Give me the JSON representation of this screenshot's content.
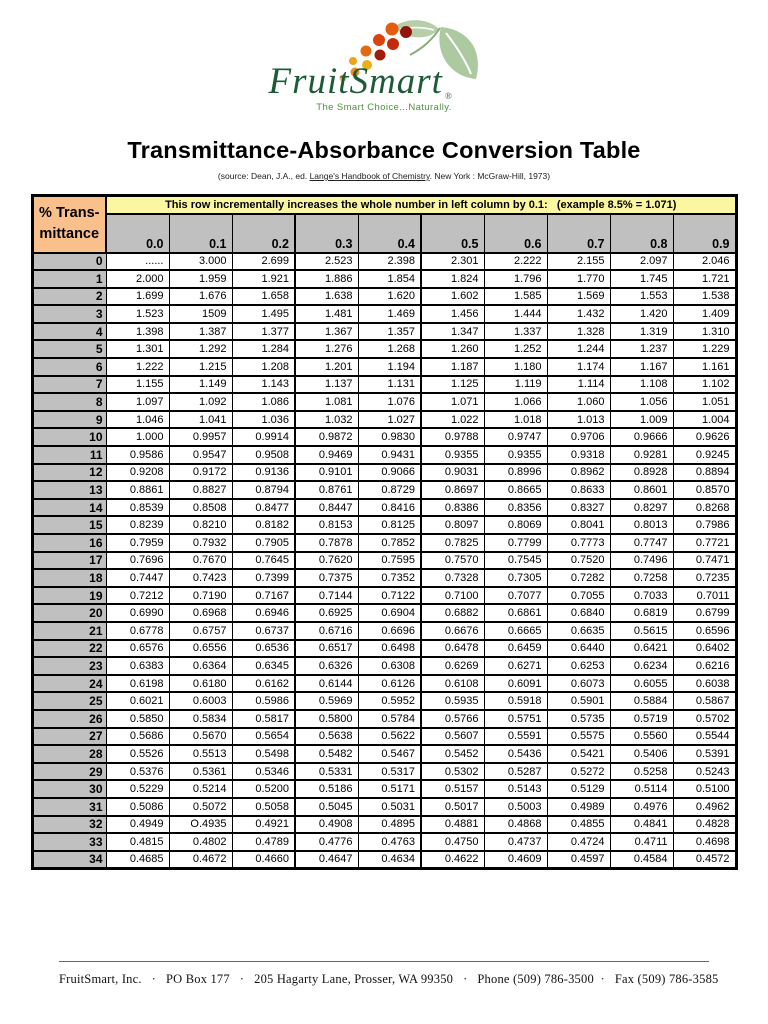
{
  "logo": {
    "brand": "FruitSmart",
    "registered_mark": "®",
    "tagline": "The Smart Choice...Naturally.",
    "colors": {
      "brand_green": "#1D5B36",
      "tagline_green": "#4E9140",
      "leaf_green": "#ACC9A0",
      "leaf_green_light": "#B6CFA9"
    }
  },
  "title": "Transmittance-Absorbance Conversion Table",
  "source": {
    "prefix": "(source:  Dean, J.A., ed. ",
    "underlined": "Lange's Handbook of Chemistry",
    "suffix": ". New York : McGraw-Hill, 1973)"
  },
  "table": {
    "corner_label_line1": "% Trans-",
    "corner_label_line2": "mittance",
    "instruction": "This row incrementally increases the whole number in left column by 0.1:   (example 8.5% = 1.071)",
    "col_headers": [
      "0.0",
      "0.1",
      "0.2",
      "0.3",
      "0.4",
      "0.5",
      "0.6",
      "0.7",
      "0.8",
      "0.9"
    ],
    "colors": {
      "corner_bg": "#FAC08C",
      "instruction_bg": "#FAF7A0",
      "header_bg": "#C0C0C0"
    },
    "rows": [
      {
        "label": "0",
        "values": [
          "......",
          "3.000",
          "2.699",
          "2.523",
          "2.398",
          "2.301",
          "2.222",
          "2.155",
          "2.097",
          "2.046"
        ]
      },
      {
        "label": "1",
        "values": [
          "2.000",
          "1.959",
          "1.921",
          "1.886",
          "1.854",
          "1.824",
          "1.796",
          "1.770",
          "1.745",
          "1.721"
        ]
      },
      {
        "label": "2",
        "values": [
          "1.699",
          "1.676",
          "1.658",
          "1.638",
          "1.620",
          "1.602",
          "1.585",
          "1.569",
          "1.553",
          "1.538"
        ]
      },
      {
        "label": "3",
        "values": [
          "1.523",
          "1509",
          "1.495",
          "1.481",
          "1.469",
          "1.456",
          "1.444",
          "1.432",
          "1.420",
          "1.409"
        ]
      },
      {
        "label": "4",
        "values": [
          "1.398",
          "1.387",
          "1.377",
          "1.367",
          "1.357",
          "1.347",
          "1.337",
          "1.328",
          "1.319",
          "1.310"
        ]
      },
      {
        "label": "5",
        "values": [
          "1.301",
          "1.292",
          "1.284",
          "1.276",
          "1.268",
          "1.260",
          "1.252",
          "1.244",
          "1.237",
          "1.229"
        ]
      },
      {
        "label": "6",
        "values": [
          "1.222",
          "1.215",
          "1.208",
          "1.201",
          "1.194",
          "1.187",
          "1.180",
          "1.174",
          "1.167",
          "1.161"
        ]
      },
      {
        "label": "7",
        "values": [
          "1.155",
          "1.149",
          "1.143",
          "1.137",
          "1.131",
          "1.125",
          "1.119",
          "1.114",
          "1.108",
          "1.102"
        ]
      },
      {
        "label": "8",
        "values": [
          "1.097",
          "1.092",
          "1.086",
          "1.081",
          "1.076",
          "1.071",
          "1.066",
          "1.060",
          "1.056",
          "1.051"
        ]
      },
      {
        "label": "9",
        "values": [
          "1.046",
          "1.041",
          "1.036",
          "1.032",
          "1.027",
          "1.022",
          "1.018",
          "1.013",
          "1.009",
          "1.004"
        ]
      },
      {
        "label": "10",
        "values": [
          "1.000",
          "0.9957",
          "0.9914",
          "0.9872",
          "0.9830",
          "0.9788",
          "0.9747",
          "0.9706",
          "0.9666",
          "0.9626"
        ]
      },
      {
        "label": "11",
        "values": [
          "0.9586",
          "0.9547",
          "0.9508",
          "0.9469",
          "0.9431",
          "0.9355",
          "0.9355",
          "0.9318",
          "0.9281",
          "0.9245"
        ]
      },
      {
        "label": "12",
        "values": [
          "0.9208",
          "0.9172",
          "0.9136",
          "0.9101",
          "0.9066",
          "0.9031",
          "0.8996",
          "0.8962",
          "0.8928",
          "0.8894"
        ]
      },
      {
        "label": "13",
        "values": [
          "0.8861",
          "0.8827",
          "0.8794",
          "0.8761",
          "0.8729",
          "0.8697",
          "0.8665",
          "0.8633",
          "0.8601",
          "0.8570"
        ]
      },
      {
        "label": "14",
        "values": [
          "0.8539",
          "0.8508",
          "0.8477",
          "0.8447",
          "0.8416",
          "0.8386",
          "0.8356",
          "0.8327",
          "0.8297",
          "0.8268"
        ]
      },
      {
        "label": "15",
        "values": [
          "0.8239",
          "0.8210",
          "0.8182",
          "0.8153",
          "0.8125",
          "0.8097",
          "0.8069",
          "0.8041",
          "0.8013",
          "0.7986"
        ]
      },
      {
        "label": "16",
        "values": [
          "0.7959",
          "0.7932",
          "0.7905",
          "0.7878",
          "0.7852",
          "0.7825",
          "0.7799",
          "0.7773",
          "0.7747",
          "0.7721"
        ]
      },
      {
        "label": "17",
        "values": [
          "0.7696",
          "0.7670",
          "0.7645",
          "0.7620",
          "0.7595",
          "0.7570",
          "0.7545",
          "0.7520",
          "0.7496",
          "0.7471"
        ]
      },
      {
        "label": "18",
        "values": [
          "0.7447",
          "0.7423",
          "0.7399",
          "0.7375",
          "0.7352",
          "0.7328",
          "0.7305",
          "0.7282",
          "0.7258",
          "0.7235"
        ]
      },
      {
        "label": "19",
        "values": [
          "0.7212",
          "0.7190",
          "0.7167",
          "0.7144",
          "0.7122",
          "0.7100",
          "0.7077",
          "0.7055",
          "0.7033",
          "0.7011"
        ]
      },
      {
        "label": "20",
        "values": [
          "0.6990",
          "0.6968",
          "0.6946",
          "0.6925",
          "0.6904",
          "0.6882",
          "0.6861",
          "0.6840",
          "0.6819",
          "0.6799"
        ]
      },
      {
        "label": "21",
        "values": [
          "0.6778",
          "0.6757",
          "0.6737",
          "0.6716",
          "0.6696",
          "0.6676",
          "0.6665",
          "0.6635",
          "0.5615",
          "0.6596"
        ]
      },
      {
        "label": "22",
        "values": [
          "0.6576",
          "0.6556",
          "0.6536",
          "0.6517",
          "0.6498",
          "0.6478",
          "0.6459",
          "0.6440",
          "0.6421",
          "0.6402"
        ]
      },
      {
        "label": "23",
        "values": [
          "0.6383",
          "0.6364",
          "0.6345",
          "0.6326",
          "0.6308",
          "0.6269",
          "0.6271",
          "0.6253",
          "0.6234",
          "0.6216"
        ]
      },
      {
        "label": "24",
        "values": [
          "0.6198",
          "0.6180",
          "0.6162",
          "0.6144",
          "0.6126",
          "0.6108",
          "0.6091",
          "0.6073",
          "0.6055",
          "0.6038"
        ]
      },
      {
        "label": "25",
        "values": [
          "0.6021",
          "0.6003",
          "0.5986",
          "0.5969",
          "0.5952",
          "0.5935",
          "0.5918",
          "0.5901",
          "0.5884",
          "0.5867"
        ]
      },
      {
        "label": "26",
        "values": [
          "0.5850",
          "0.5834",
          "0.5817",
          "0.5800",
          "0.5784",
          "0.5766",
          "0.5751",
          "0.5735",
          "0.5719",
          "0.5702"
        ]
      },
      {
        "label": "27",
        "values": [
          "0.5686",
          "0.5670",
          "0.5654",
          "0.5638",
          "0.5622",
          "0.5607",
          "0.5591",
          "0.5575",
          "0.5560",
          "0.5544"
        ]
      },
      {
        "label": "28",
        "values": [
          "0.5526",
          "0.5513",
          "0.5498",
          "0.5482",
          "0.5467",
          "0.5452",
          "0.5436",
          "0.5421",
          "0.5406",
          "0.5391"
        ]
      },
      {
        "label": "29",
        "values": [
          "0.5376",
          "0.5361",
          "0.5346",
          "0.5331",
          "0.5317",
          "0.5302",
          "0.5287",
          "0.5272",
          "0.5258",
          "0.5243"
        ]
      },
      {
        "label": "30",
        "values": [
          "0.5229",
          "0.5214",
          "0.5200",
          "0.5186",
          "0.5171",
          "0.5157",
          "0.5143",
          "0.5129",
          "0.5114",
          "0.5100"
        ]
      },
      {
        "label": "31",
        "values": [
          "0.5086",
          "0.5072",
          "0.5058",
          "0.5045",
          "0.5031",
          "0.5017",
          "0.5003",
          "0.4989",
          "0.4976",
          "0.4962"
        ]
      },
      {
        "label": "32",
        "values": [
          "0.4949",
          "O.4935",
          "0.4921",
          "0.4908",
          "0.4895",
          "0.4881",
          "0.4868",
          "0.4855",
          "0.4841",
          "0.4828"
        ]
      },
      {
        "label": "33",
        "values": [
          "0.4815",
          "0.4802",
          "0.4789",
          "0.4776",
          "0.4763",
          "0.4750",
          "0.4737",
          "0.4724",
          "0.4711",
          "0.4698"
        ]
      },
      {
        "label": "34",
        "values": [
          "0.4685",
          "0.4672",
          "0.4660",
          "0.4647",
          "0.4634",
          "0.4622",
          "0.4609",
          "0.4597",
          "0.4584",
          "0.4572"
        ]
      }
    ]
  },
  "footer": {
    "text": "FruitSmart, Inc.   ·   PO Box 177   ·   205 Hagarty Lane, Prosser, WA 99350   ·   Phone (509) 786-3500  ·   Fax (509) 786-3585"
  }
}
